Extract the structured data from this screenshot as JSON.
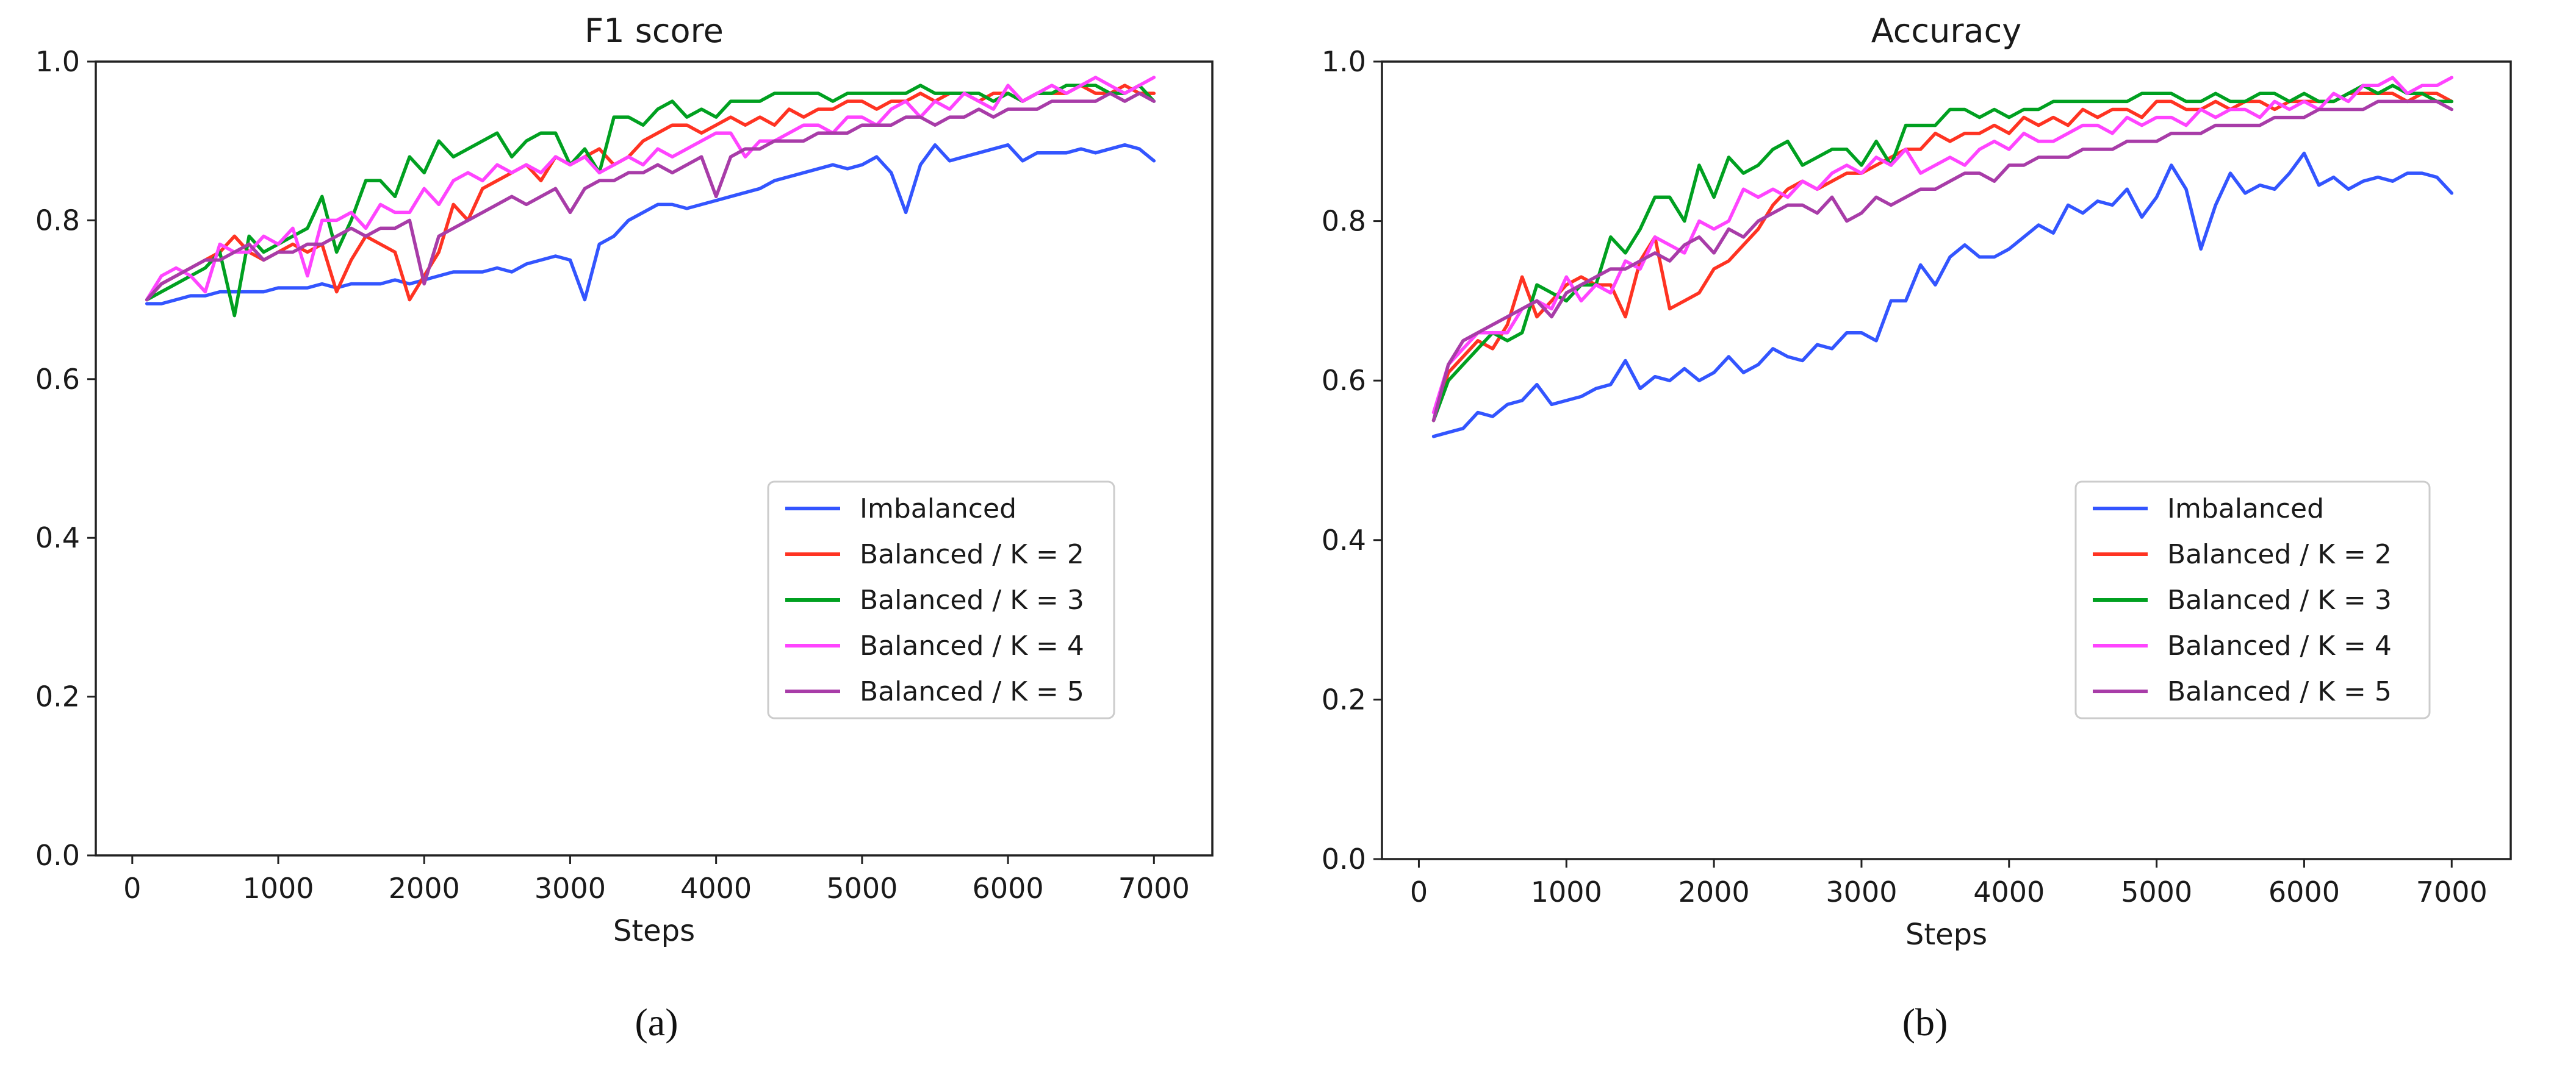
{
  "captions": [
    "(a)",
    "(b)"
  ],
  "chart_data": [
    {
      "type": "line",
      "title": "F1 score",
      "xlabel": "Steps",
      "ylabel": "",
      "xlim": [
        -250,
        7400
      ],
      "ylim": [
        0.0,
        1.0
      ],
      "xticks": [
        "0",
        "1000",
        "2000",
        "3000",
        "4000",
        "5000",
        "6000",
        "7000"
      ],
      "yticks": [
        "0.0",
        "0.2",
        "0.4",
        "0.6",
        "0.8",
        "1.0"
      ],
      "grid": false,
      "legend_position": "center-right",
      "x": [
        100,
        200,
        300,
        400,
        500,
        600,
        700,
        800,
        900,
        1000,
        1100,
        1200,
        1300,
        1400,
        1500,
        1600,
        1700,
        1800,
        1900,
        2000,
        2100,
        2200,
        2300,
        2400,
        2500,
        2600,
        2700,
        2800,
        2900,
        3000,
        3100,
        3200,
        3300,
        3400,
        3500,
        3600,
        3700,
        3800,
        3900,
        4000,
        4100,
        4200,
        4300,
        4400,
        4500,
        4600,
        4700,
        4800,
        4900,
        5000,
        5100,
        5200,
        5300,
        5400,
        5500,
        5600,
        5700,
        5800,
        5900,
        6000,
        6100,
        6200,
        6300,
        6400,
        6500,
        6600,
        6700,
        6800,
        6900,
        7000
      ],
      "series": [
        {
          "name": "Imbalanced",
          "color": "#3355ff",
          "values": [
            0.695,
            0.695,
            0.7,
            0.705,
            0.705,
            0.71,
            0.71,
            0.71,
            0.71,
            0.715,
            0.715,
            0.715,
            0.72,
            0.715,
            0.72,
            0.72,
            0.72,
            0.725,
            0.72,
            0.725,
            0.73,
            0.735,
            0.735,
            0.735,
            0.74,
            0.735,
            0.745,
            0.75,
            0.755,
            0.75,
            0.7,
            0.77,
            0.78,
            0.8,
            0.81,
            0.82,
            0.82,
            0.815,
            0.82,
            0.825,
            0.83,
            0.835,
            0.84,
            0.85,
            0.855,
            0.86,
            0.865,
            0.87,
            0.865,
            0.87,
            0.88,
            0.86,
            0.81,
            0.87,
            0.895,
            0.875,
            0.88,
            0.885,
            0.89,
            0.895,
            0.875,
            0.885,
            0.885,
            0.885,
            0.89,
            0.885,
            0.89,
            0.895,
            0.89,
            0.875
          ]
        },
        {
          "name": "Balanced / K = 2",
          "color": "#ff3322",
          "values": [
            0.7,
            0.72,
            0.73,
            0.74,
            0.75,
            0.76,
            0.78,
            0.76,
            0.75,
            0.76,
            0.77,
            0.76,
            0.77,
            0.71,
            0.75,
            0.78,
            0.77,
            0.76,
            0.7,
            0.73,
            0.76,
            0.82,
            0.8,
            0.84,
            0.85,
            0.86,
            0.87,
            0.85,
            0.88,
            0.87,
            0.88,
            0.89,
            0.87,
            0.88,
            0.9,
            0.91,
            0.92,
            0.92,
            0.91,
            0.92,
            0.93,
            0.92,
            0.93,
            0.92,
            0.94,
            0.93,
            0.94,
            0.94,
            0.95,
            0.95,
            0.94,
            0.95,
            0.95,
            0.96,
            0.95,
            0.96,
            0.96,
            0.95,
            0.96,
            0.96,
            0.95,
            0.96,
            0.96,
            0.96,
            0.97,
            0.96,
            0.96,
            0.97,
            0.96,
            0.96
          ]
        },
        {
          "name": "Balanced / K = 3",
          "color": "#00a020",
          "values": [
            0.7,
            0.71,
            0.72,
            0.73,
            0.74,
            0.76,
            0.68,
            0.78,
            0.76,
            0.77,
            0.78,
            0.79,
            0.83,
            0.76,
            0.8,
            0.85,
            0.85,
            0.83,
            0.88,
            0.86,
            0.9,
            0.88,
            0.89,
            0.9,
            0.91,
            0.88,
            0.9,
            0.91,
            0.91,
            0.87,
            0.89,
            0.86,
            0.93,
            0.93,
            0.92,
            0.94,
            0.95,
            0.93,
            0.94,
            0.93,
            0.95,
            0.95,
            0.95,
            0.96,
            0.96,
            0.96,
            0.96,
            0.95,
            0.96,
            0.96,
            0.96,
            0.96,
            0.96,
            0.97,
            0.96,
            0.96,
            0.96,
            0.96,
            0.95,
            0.96,
            0.95,
            0.96,
            0.96,
            0.97,
            0.97,
            0.97,
            0.96,
            0.96,
            0.97,
            0.95
          ]
        },
        {
          "name": "Balanced / K = 4",
          "color": "#ff44ff",
          "values": [
            0.7,
            0.73,
            0.74,
            0.73,
            0.71,
            0.77,
            0.76,
            0.76,
            0.78,
            0.77,
            0.79,
            0.73,
            0.8,
            0.8,
            0.81,
            0.79,
            0.82,
            0.81,
            0.81,
            0.84,
            0.82,
            0.85,
            0.86,
            0.85,
            0.87,
            0.86,
            0.87,
            0.86,
            0.88,
            0.87,
            0.88,
            0.86,
            0.87,
            0.88,
            0.87,
            0.89,
            0.88,
            0.89,
            0.9,
            0.91,
            0.91,
            0.88,
            0.9,
            0.9,
            0.91,
            0.92,
            0.92,
            0.91,
            0.93,
            0.93,
            0.92,
            0.94,
            0.95,
            0.93,
            0.95,
            0.94,
            0.96,
            0.95,
            0.94,
            0.97,
            0.95,
            0.96,
            0.97,
            0.96,
            0.97,
            0.98,
            0.97,
            0.96,
            0.97,
            0.98
          ]
        },
        {
          "name": "Balanced / K = 5",
          "color": "#a83ca8",
          "values": [
            0.7,
            0.72,
            0.73,
            0.74,
            0.75,
            0.75,
            0.76,
            0.77,
            0.75,
            0.76,
            0.76,
            0.77,
            0.77,
            0.78,
            0.79,
            0.78,
            0.79,
            0.79,
            0.8,
            0.72,
            0.78,
            0.79,
            0.8,
            0.81,
            0.82,
            0.83,
            0.82,
            0.83,
            0.84,
            0.81,
            0.84,
            0.85,
            0.85,
            0.86,
            0.86,
            0.87,
            0.86,
            0.87,
            0.88,
            0.83,
            0.88,
            0.89,
            0.89,
            0.9,
            0.9,
            0.9,
            0.91,
            0.91,
            0.91,
            0.92,
            0.92,
            0.92,
            0.93,
            0.93,
            0.92,
            0.93,
            0.93,
            0.94,
            0.93,
            0.94,
            0.94,
            0.94,
            0.95,
            0.95,
            0.95,
            0.95,
            0.96,
            0.95,
            0.96,
            0.95
          ]
        }
      ]
    },
    {
      "type": "line",
      "title": "Accuracy",
      "xlabel": "Steps",
      "ylabel": "",
      "xlim": [
        -250,
        7400
      ],
      "ylim": [
        0.0,
        1.0
      ],
      "xticks": [
        "0",
        "1000",
        "2000",
        "3000",
        "4000",
        "5000",
        "6000",
        "7000"
      ],
      "yticks": [
        "0.0",
        "0.2",
        "0.4",
        "0.6",
        "0.8",
        "1.0"
      ],
      "grid": false,
      "legend_position": "center-right",
      "x": [
        100,
        200,
        300,
        400,
        500,
        600,
        700,
        800,
        900,
        1000,
        1100,
        1200,
        1300,
        1400,
        1500,
        1600,
        1700,
        1800,
        1900,
        2000,
        2100,
        2200,
        2300,
        2400,
        2500,
        2600,
        2700,
        2800,
        2900,
        3000,
        3100,
        3200,
        3300,
        3400,
        3500,
        3600,
        3700,
        3800,
        3900,
        4000,
        4100,
        4200,
        4300,
        4400,
        4500,
        4600,
        4700,
        4800,
        4900,
        5000,
        5100,
        5200,
        5300,
        5400,
        5500,
        5600,
        5700,
        5800,
        5900,
        6000,
        6100,
        6200,
        6300,
        6400,
        6500,
        6600,
        6700,
        6800,
        6900,
        7000
      ],
      "series": [
        {
          "name": "Imbalanced",
          "color": "#3355ff",
          "values": [
            0.53,
            0.535,
            0.54,
            0.56,
            0.555,
            0.57,
            0.575,
            0.595,
            0.57,
            0.575,
            0.58,
            0.59,
            0.595,
            0.625,
            0.59,
            0.605,
            0.6,
            0.615,
            0.6,
            0.61,
            0.63,
            0.61,
            0.62,
            0.64,
            0.63,
            0.625,
            0.645,
            0.64,
            0.66,
            0.66,
            0.65,
            0.7,
            0.7,
            0.745,
            0.72,
            0.755,
            0.77,
            0.755,
            0.755,
            0.765,
            0.78,
            0.795,
            0.785,
            0.82,
            0.81,
            0.825,
            0.82,
            0.84,
            0.805,
            0.83,
            0.87,
            0.84,
            0.765,
            0.82,
            0.86,
            0.835,
            0.845,
            0.84,
            0.86,
            0.885,
            0.845,
            0.855,
            0.84,
            0.85,
            0.855,
            0.85,
            0.86,
            0.86,
            0.855,
            0.835
          ]
        },
        {
          "name": "Balanced / K = 2",
          "color": "#ff3322",
          "values": [
            0.55,
            0.61,
            0.63,
            0.65,
            0.64,
            0.67,
            0.73,
            0.68,
            0.7,
            0.72,
            0.73,
            0.72,
            0.72,
            0.68,
            0.75,
            0.78,
            0.69,
            0.7,
            0.71,
            0.74,
            0.75,
            0.77,
            0.79,
            0.82,
            0.84,
            0.85,
            0.84,
            0.85,
            0.86,
            0.86,
            0.87,
            0.88,
            0.89,
            0.89,
            0.91,
            0.9,
            0.91,
            0.91,
            0.92,
            0.91,
            0.93,
            0.92,
            0.93,
            0.92,
            0.94,
            0.93,
            0.94,
            0.94,
            0.93,
            0.95,
            0.95,
            0.94,
            0.94,
            0.95,
            0.94,
            0.95,
            0.95,
            0.94,
            0.95,
            0.95,
            0.95,
            0.95,
            0.96,
            0.96,
            0.96,
            0.96,
            0.95,
            0.96,
            0.96,
            0.95
          ]
        },
        {
          "name": "Balanced / K = 3",
          "color": "#00a020",
          "values": [
            0.55,
            0.6,
            0.62,
            0.64,
            0.66,
            0.65,
            0.66,
            0.72,
            0.71,
            0.7,
            0.72,
            0.72,
            0.78,
            0.76,
            0.79,
            0.83,
            0.83,
            0.8,
            0.87,
            0.83,
            0.88,
            0.86,
            0.87,
            0.89,
            0.9,
            0.87,
            0.88,
            0.89,
            0.89,
            0.87,
            0.9,
            0.87,
            0.92,
            0.92,
            0.92,
            0.94,
            0.94,
            0.93,
            0.94,
            0.93,
            0.94,
            0.94,
            0.95,
            0.95,
            0.95,
            0.95,
            0.95,
            0.95,
            0.96,
            0.96,
            0.96,
            0.95,
            0.95,
            0.96,
            0.95,
            0.95,
            0.96,
            0.96,
            0.95,
            0.96,
            0.95,
            0.95,
            0.96,
            0.97,
            0.96,
            0.97,
            0.96,
            0.96,
            0.95,
            0.95
          ]
        },
        {
          "name": "Balanced / K = 4",
          "color": "#ff44ff",
          "values": [
            0.56,
            0.62,
            0.64,
            0.66,
            0.66,
            0.66,
            0.69,
            0.7,
            0.69,
            0.73,
            0.7,
            0.72,
            0.71,
            0.75,
            0.74,
            0.78,
            0.77,
            0.76,
            0.8,
            0.79,
            0.8,
            0.84,
            0.83,
            0.84,
            0.83,
            0.85,
            0.84,
            0.86,
            0.87,
            0.86,
            0.88,
            0.87,
            0.89,
            0.86,
            0.87,
            0.88,
            0.87,
            0.89,
            0.9,
            0.89,
            0.91,
            0.9,
            0.9,
            0.91,
            0.92,
            0.92,
            0.91,
            0.93,
            0.92,
            0.93,
            0.93,
            0.92,
            0.94,
            0.93,
            0.94,
            0.94,
            0.93,
            0.95,
            0.94,
            0.95,
            0.94,
            0.96,
            0.95,
            0.97,
            0.97,
            0.98,
            0.96,
            0.97,
            0.97,
            0.98
          ]
        },
        {
          "name": "Balanced / K = 5",
          "color": "#a83ca8",
          "values": [
            0.55,
            0.62,
            0.65,
            0.66,
            0.67,
            0.68,
            0.69,
            0.7,
            0.68,
            0.71,
            0.72,
            0.73,
            0.74,
            0.74,
            0.75,
            0.76,
            0.75,
            0.77,
            0.78,
            0.76,
            0.79,
            0.78,
            0.8,
            0.81,
            0.82,
            0.82,
            0.81,
            0.83,
            0.8,
            0.81,
            0.83,
            0.82,
            0.83,
            0.84,
            0.84,
            0.85,
            0.86,
            0.86,
            0.85,
            0.87,
            0.87,
            0.88,
            0.88,
            0.88,
            0.89,
            0.89,
            0.89,
            0.9,
            0.9,
            0.9,
            0.91,
            0.91,
            0.91,
            0.92,
            0.92,
            0.92,
            0.92,
            0.93,
            0.93,
            0.93,
            0.94,
            0.94,
            0.94,
            0.94,
            0.95,
            0.95,
            0.95,
            0.95,
            0.95,
            0.94
          ]
        }
      ]
    }
  ]
}
